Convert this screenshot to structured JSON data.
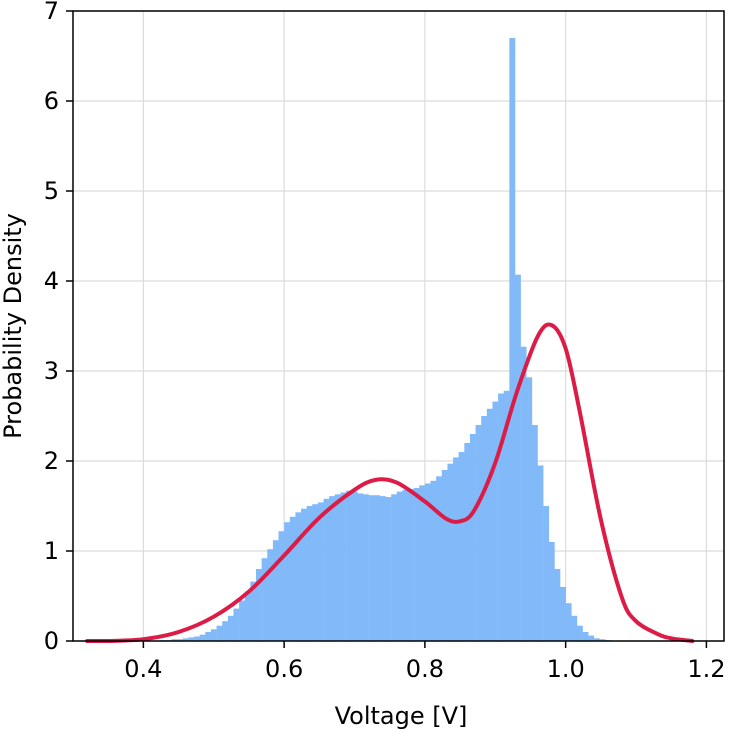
{
  "chart_data": {
    "type": "bar",
    "title": "",
    "xlabel": "Voltage [V]",
    "ylabel": "Probability Density",
    "xlim": [
      0.3,
      1.225
    ],
    "ylim": [
      0,
      7
    ],
    "xticks": [
      0.4,
      0.6,
      0.8,
      1.0,
      1.2
    ],
    "xtick_labels": [
      "0.4",
      "0.6",
      "0.8",
      "1.0",
      "1.2"
    ],
    "yticks": [
      0,
      1,
      2,
      3,
      4,
      5,
      6,
      7
    ],
    "ytick_labels": [
      "0",
      "1",
      "2",
      "3",
      "4",
      "5",
      "6",
      "7"
    ],
    "grid": true,
    "colors": {
      "bars": "#82baf9",
      "curve": "#dc1c46",
      "grid": "#dcdcdc"
    },
    "histogram": {
      "bin_width": 0.008,
      "bin_edges_start": 0.424,
      "heights": [
        0.01,
        0.01,
        0.02,
        0.02,
        0.03,
        0.04,
        0.05,
        0.07,
        0.1,
        0.13,
        0.17,
        0.22,
        0.28,
        0.36,
        0.45,
        0.55,
        0.66,
        0.8,
        0.92,
        1.02,
        1.12,
        1.22,
        1.32,
        1.38,
        1.43,
        1.47,
        1.5,
        1.52,
        1.54,
        1.58,
        1.61,
        1.63,
        1.65,
        1.67,
        1.66,
        1.64,
        1.63,
        1.62,
        1.62,
        1.61,
        1.6,
        1.63,
        1.66,
        1.68,
        1.69,
        1.7,
        1.73,
        1.75,
        1.78,
        1.83,
        1.9,
        1.97,
        2.04,
        2.1,
        2.2,
        2.3,
        2.4,
        2.5,
        2.58,
        2.66,
        2.75,
        2.78,
        6.7,
        4.07,
        3.27,
        2.93,
        2.4,
        1.95,
        1.5,
        1.1,
        0.8,
        0.6,
        0.42,
        0.28,
        0.17,
        0.1,
        0.06,
        0.03,
        0.02,
        0.01
      ]
    },
    "series": [
      {
        "x": [
          0.32,
          0.35,
          0.4,
          0.45,
          0.5,
          0.55,
          0.6,
          0.65,
          0.7,
          0.73,
          0.76,
          0.8,
          0.83,
          0.85,
          0.87,
          0.9,
          0.93,
          0.96,
          0.98,
          1.0,
          1.02,
          1.05,
          1.08,
          1.1,
          1.13,
          1.15,
          1.18
        ],
        "y": [
          0.0,
          0.0,
          0.02,
          0.1,
          0.27,
          0.55,
          0.95,
          1.37,
          1.68,
          1.79,
          1.76,
          1.55,
          1.36,
          1.33,
          1.45,
          1.98,
          2.75,
          3.38,
          3.51,
          3.25,
          2.55,
          1.35,
          0.48,
          0.22,
          0.08,
          0.03,
          0.0
        ]
      }
    ]
  }
}
